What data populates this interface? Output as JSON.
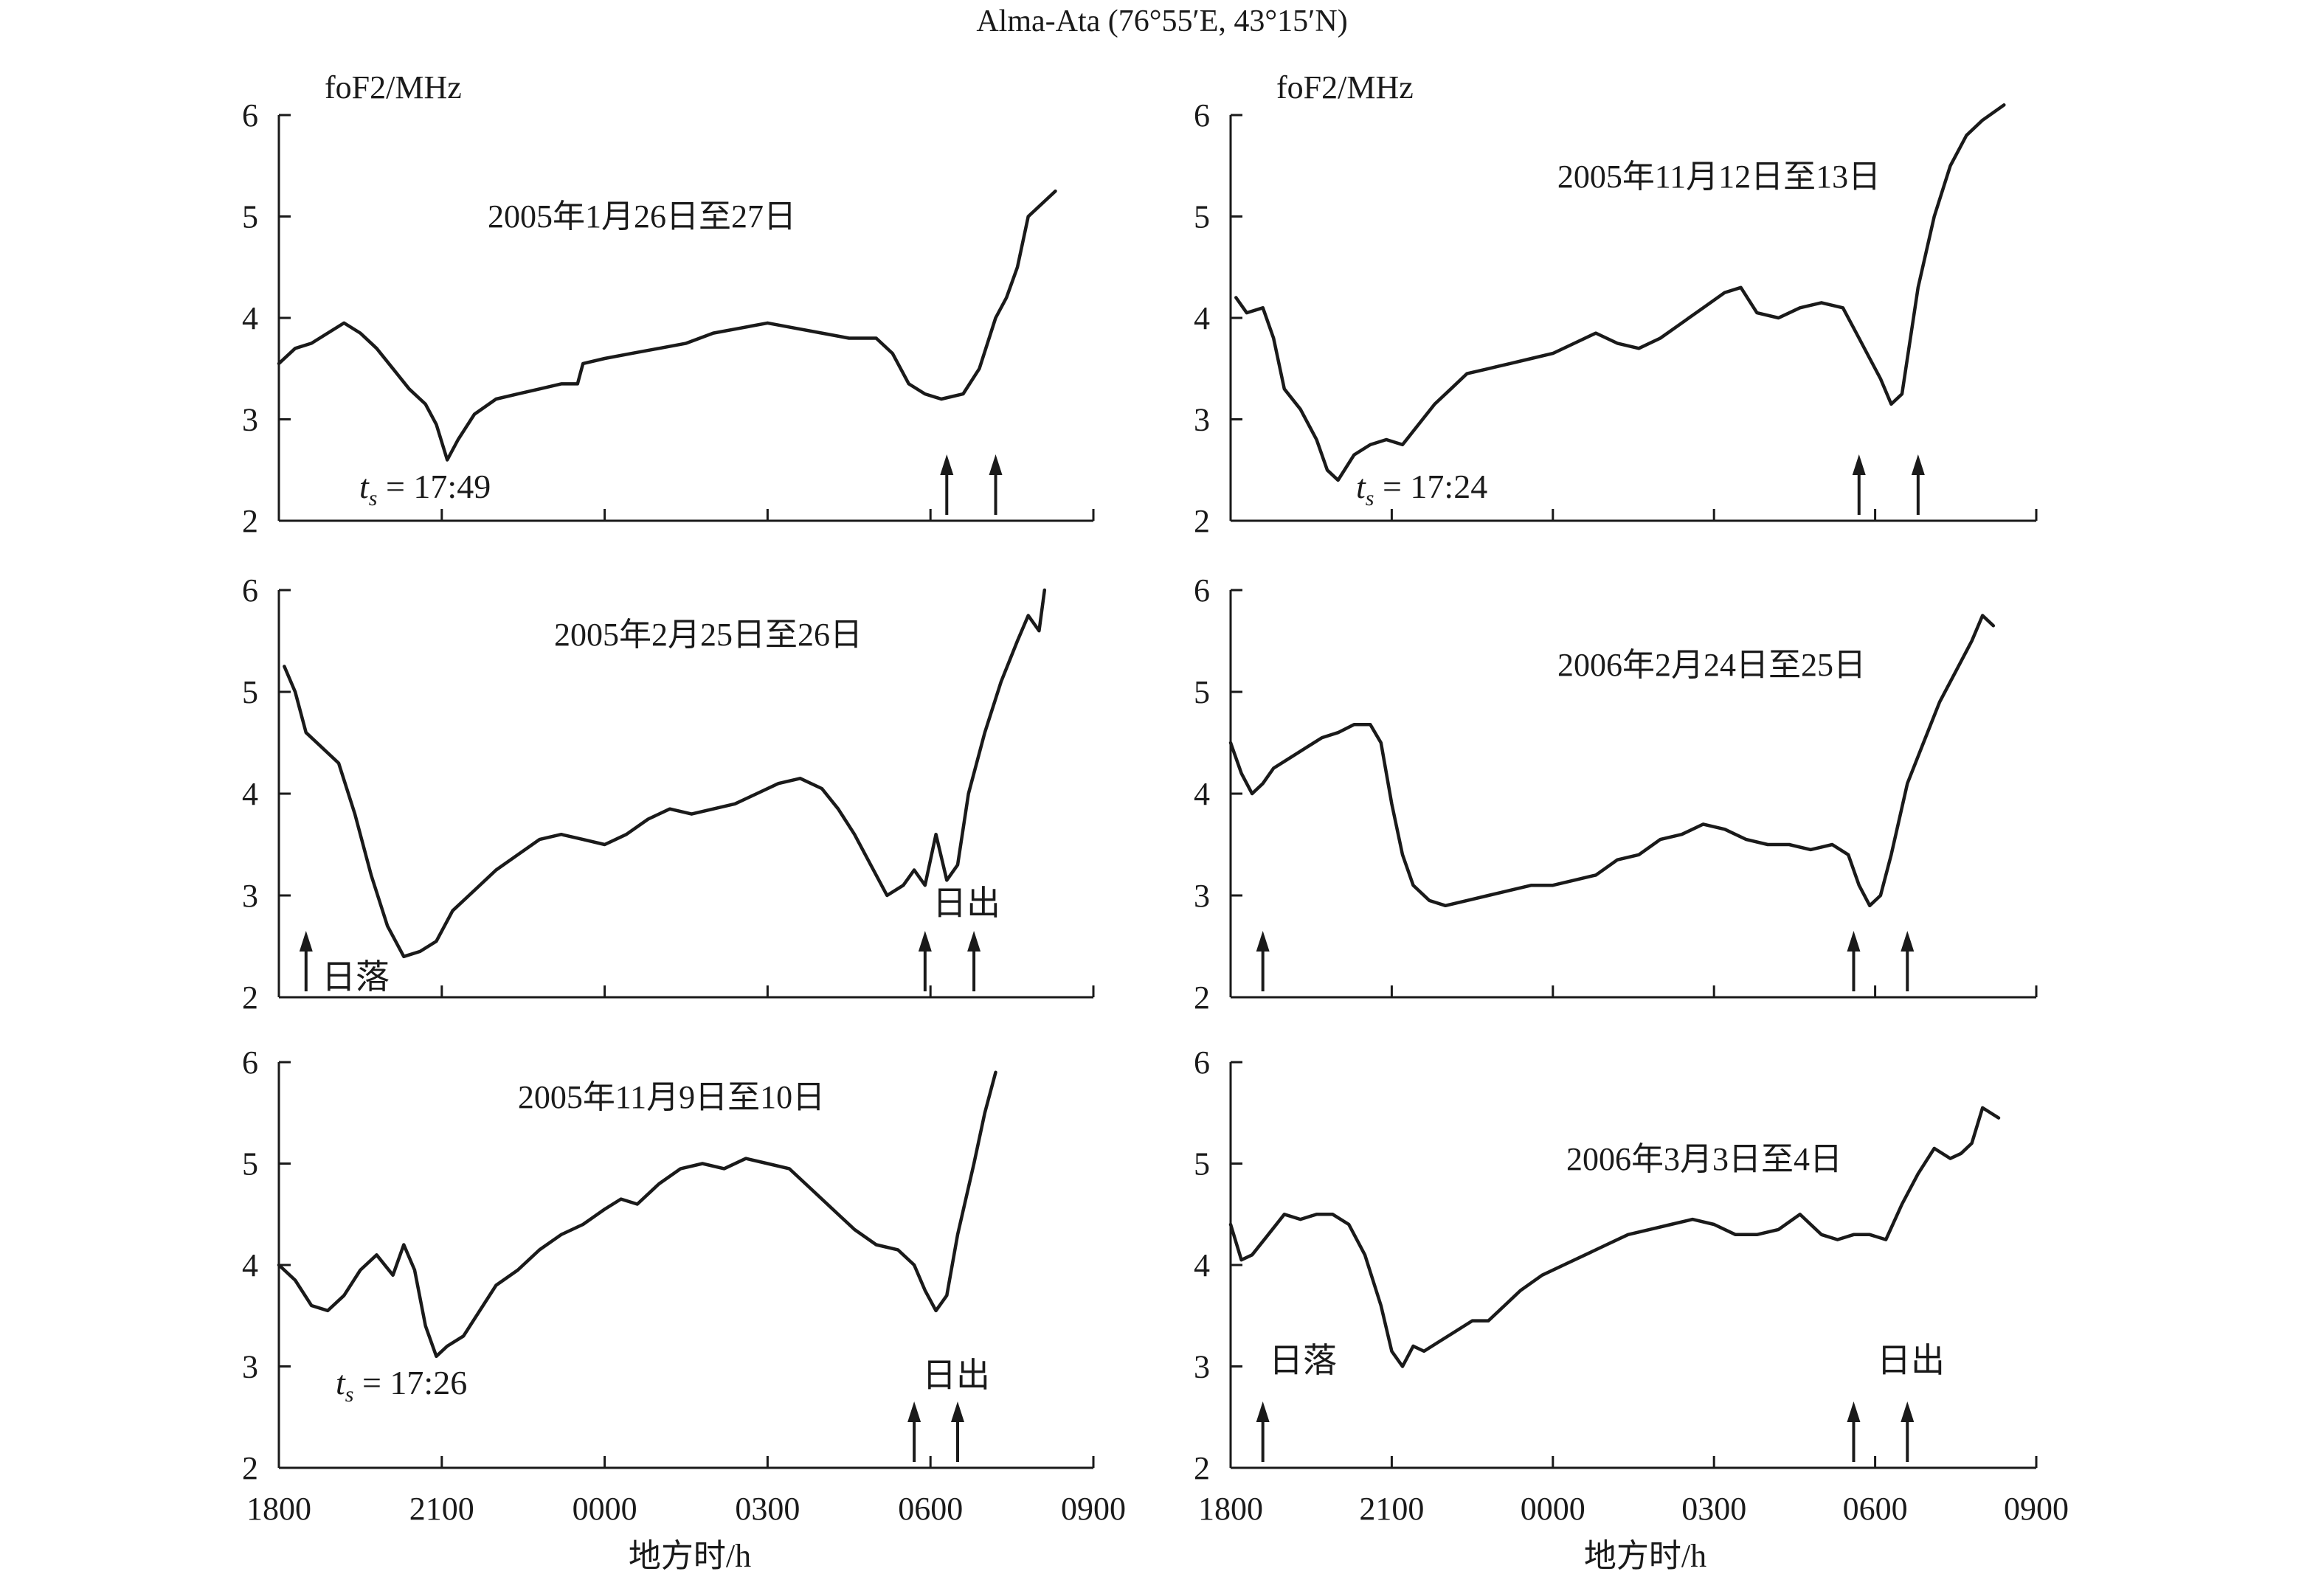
{
  "figure": {
    "title": "Alma-Ata (76°55′E, 43°15′N)",
    "xlabel": "地方时/h",
    "ylabel": "foF2/MHz"
  },
  "chart_data": [
    {
      "type": "line",
      "title": "2005年1月26日至27日",
      "ts_label": "17:49",
      "ylim": [
        2,
        6
      ],
      "yticks": [
        2,
        3,
        4,
        5,
        6
      ],
      "xlim": [
        18,
        33
      ],
      "xticks": [
        "1800",
        "2100",
        "0000",
        "0300",
        "0600",
        "0900"
      ],
      "arrows": [
        30.3,
        31.2
      ],
      "marker_labels": [],
      "x": [
        18.0,
        18.3,
        18.6,
        18.9,
        19.2,
        19.5,
        19.8,
        20.1,
        20.4,
        20.7,
        20.9,
        21.1,
        21.3,
        21.6,
        22.0,
        22.4,
        22.8,
        23.2,
        23.5,
        23.6,
        24.0,
        24.5,
        25.0,
        25.5,
        26.0,
        26.5,
        27.0,
        27.5,
        28.0,
        28.5,
        29.0,
        29.3,
        29.6,
        29.9,
        30.2,
        30.6,
        30.9,
        31.2,
        31.4,
        31.6,
        31.8,
        32.1,
        32.3
      ],
      "y": [
        3.55,
        3.7,
        3.75,
        3.85,
        3.95,
        3.85,
        3.7,
        3.5,
        3.3,
        3.15,
        2.95,
        2.6,
        2.8,
        3.05,
        3.2,
        3.25,
        3.3,
        3.35,
        3.35,
        3.55,
        3.6,
        3.65,
        3.7,
        3.75,
        3.85,
        3.9,
        3.95,
        3.9,
        3.85,
        3.8,
        3.8,
        3.65,
        3.35,
        3.25,
        3.2,
        3.25,
        3.5,
        4.0,
        4.2,
        4.5,
        5.0,
        5.15,
        5.25
      ]
    },
    {
      "type": "line",
      "title": "2005年2月25日至26日",
      "ts_label": "",
      "ylim": [
        2,
        6
      ],
      "yticks": [
        2,
        3,
        4,
        5,
        6
      ],
      "xlim": [
        18,
        33
      ],
      "xticks": [
        "1800",
        "2100",
        "0000",
        "0300",
        "0600",
        "0900"
      ],
      "arrows": [
        18.5,
        29.9,
        30.8
      ],
      "marker_labels": [
        "日落",
        "日出"
      ],
      "x": [
        18.1,
        18.3,
        18.5,
        18.8,
        19.1,
        19.4,
        19.7,
        20.0,
        20.3,
        20.6,
        20.9,
        21.2,
        21.6,
        22.0,
        22.4,
        22.8,
        23.2,
        23.6,
        24.0,
        24.4,
        24.8,
        25.2,
        25.6,
        26.0,
        26.4,
        26.8,
        27.2,
        27.6,
        28.0,
        28.3,
        28.6,
        28.9,
        29.2,
        29.5,
        29.7,
        29.9,
        30.1,
        30.3,
        30.5,
        30.7,
        31.0,
        31.3,
        31.6,
        31.8,
        32.0,
        32.1
      ],
      "y": [
        5.25,
        5.0,
        4.6,
        4.45,
        4.3,
        3.8,
        3.2,
        2.7,
        2.4,
        2.45,
        2.55,
        2.85,
        3.05,
        3.25,
        3.4,
        3.55,
        3.6,
        3.55,
        3.5,
        3.6,
        3.75,
        3.85,
        3.8,
        3.85,
        3.9,
        4.0,
        4.1,
        4.15,
        4.05,
        3.85,
        3.6,
        3.3,
        3.0,
        3.1,
        3.25,
        3.1,
        3.6,
        3.15,
        3.3,
        4.0,
        4.6,
        5.1,
        5.5,
        5.75,
        5.6,
        6.0
      ]
    },
    {
      "type": "line",
      "title": "2005年11月9日至10日",
      "ts_label": "17:26",
      "ylim": [
        2,
        6
      ],
      "yticks": [
        2,
        3,
        4,
        5,
        6
      ],
      "xlim": [
        18,
        33
      ],
      "xticks": [
        "1800",
        "2100",
        "0000",
        "0300",
        "0600",
        "0900"
      ],
      "arrows": [
        29.7,
        30.5
      ],
      "marker_labels": [
        "日出"
      ],
      "x": [
        18.0,
        18.3,
        18.6,
        18.9,
        19.2,
        19.5,
        19.8,
        20.1,
        20.3,
        20.5,
        20.7,
        20.9,
        21.1,
        21.4,
        21.7,
        22.0,
        22.4,
        22.8,
        23.2,
        23.6,
        24.0,
        24.3,
        24.6,
        25.0,
        25.4,
        25.8,
        26.2,
        26.6,
        27.0,
        27.4,
        27.8,
        28.2,
        28.6,
        29.0,
        29.4,
        29.7,
        29.9,
        30.1,
        30.3,
        30.5,
        30.8,
        31.0,
        31.2
      ],
      "y": [
        4.0,
        3.85,
        3.6,
        3.55,
        3.7,
        3.95,
        4.1,
        3.9,
        4.2,
        3.95,
        3.4,
        3.1,
        3.2,
        3.3,
        3.55,
        3.8,
        3.95,
        4.15,
        4.3,
        4.4,
        4.55,
        4.65,
        4.6,
        4.8,
        4.95,
        5.0,
        4.95,
        5.05,
        5.0,
        4.95,
        4.75,
        4.55,
        4.35,
        4.2,
        4.15,
        4.0,
        3.75,
        3.55,
        3.7,
        4.3,
        5.0,
        5.5,
        5.9
      ]
    },
    {
      "type": "line",
      "title": "2005年11月12日至13日",
      "ts_label": "17:24",
      "ylim": [
        2,
        6
      ],
      "yticks": [
        2,
        3,
        4,
        5,
        6
      ],
      "xlim": [
        18,
        33
      ],
      "xticks": [
        "1800",
        "2100",
        "0000",
        "0300",
        "0600",
        "0900"
      ],
      "arrows": [
        29.7,
        30.8
      ],
      "marker_labels": [],
      "x": [
        18.1,
        18.3,
        18.6,
        18.8,
        19.0,
        19.3,
        19.6,
        19.8,
        20.0,
        20.3,
        20.6,
        20.9,
        21.2,
        21.5,
        21.8,
        22.1,
        22.4,
        22.8,
        23.2,
        23.6,
        24.0,
        24.4,
        24.8,
        25.2,
        25.6,
        26.0,
        26.4,
        26.8,
        27.2,
        27.5,
        27.8,
        28.2,
        28.6,
        29.0,
        29.4,
        29.7,
        29.9,
        30.1,
        30.3,
        30.5,
        30.8,
        31.1,
        31.4,
        31.7,
        32.0,
        32.4
      ],
      "y": [
        4.2,
        4.05,
        4.1,
        3.8,
        3.3,
        3.1,
        2.8,
        2.5,
        2.4,
        2.65,
        2.75,
        2.8,
        2.75,
        2.95,
        3.15,
        3.3,
        3.45,
        3.5,
        3.55,
        3.6,
        3.65,
        3.75,
        3.85,
        3.75,
        3.7,
        3.8,
        3.95,
        4.1,
        4.25,
        4.3,
        4.05,
        4.0,
        4.1,
        4.15,
        4.1,
        3.8,
        3.6,
        3.4,
        3.15,
        3.25,
        4.3,
        5.0,
        5.5,
        5.8,
        5.95,
        6.1
      ]
    },
    {
      "type": "line",
      "title": "2006年2月24日至25日",
      "ts_label": "",
      "ylim": [
        2,
        6
      ],
      "yticks": [
        2,
        3,
        4,
        5,
        6
      ],
      "xlim": [
        18,
        33
      ],
      "xticks": [
        "1800",
        "2100",
        "0000",
        "0300",
        "0600",
        "0900"
      ],
      "arrows": [
        18.6,
        29.6,
        30.6
      ],
      "marker_labels": [],
      "x": [
        18.0,
        18.2,
        18.4,
        18.6,
        18.8,
        19.1,
        19.4,
        19.7,
        20.0,
        20.3,
        20.6,
        20.8,
        21.0,
        21.2,
        21.4,
        21.7,
        22.0,
        22.4,
        22.8,
        23.2,
        23.6,
        24.0,
        24.4,
        24.8,
        25.2,
        25.6,
        26.0,
        26.4,
        26.8,
        27.2,
        27.6,
        28.0,
        28.4,
        28.8,
        29.2,
        29.5,
        29.7,
        29.9,
        30.1,
        30.3,
        30.6,
        30.9,
        31.2,
        31.5,
        31.8,
        32.0,
        32.2
      ],
      "y": [
        4.5,
        4.2,
        4.0,
        4.1,
        4.25,
        4.35,
        4.45,
        4.55,
        4.6,
        4.68,
        4.68,
        4.5,
        3.9,
        3.4,
        3.1,
        2.95,
        2.9,
        2.95,
        3.0,
        3.05,
        3.1,
        3.1,
        3.15,
        3.2,
        3.35,
        3.4,
        3.55,
        3.6,
        3.7,
        3.65,
        3.55,
        3.5,
        3.5,
        3.45,
        3.5,
        3.4,
        3.1,
        2.9,
        3.0,
        3.4,
        4.1,
        4.5,
        4.9,
        5.2,
        5.5,
        5.75,
        5.65
      ]
    },
    {
      "type": "line",
      "title": "2006年3月3日至4日",
      "ts_label": "",
      "ylim": [
        2,
        6
      ],
      "yticks": [
        2,
        3,
        4,
        5,
        6
      ],
      "xlim": [
        18,
        33
      ],
      "xticks": [
        "1800",
        "2100",
        "0000",
        "0300",
        "0600",
        "0900"
      ],
      "arrows": [
        18.6,
        29.6,
        30.6
      ],
      "marker_labels": [
        "日落",
        "日出"
      ],
      "x": [
        18.0,
        18.2,
        18.4,
        18.7,
        19.0,
        19.3,
        19.6,
        19.9,
        20.2,
        20.5,
        20.8,
        21.0,
        21.2,
        21.4,
        21.6,
        21.9,
        22.2,
        22.5,
        22.8,
        23.1,
        23.4,
        23.8,
        24.2,
        24.6,
        25.0,
        25.4,
        25.8,
        26.2,
        26.6,
        27.0,
        27.4,
        27.8,
        28.2,
        28.6,
        29.0,
        29.3,
        29.6,
        29.9,
        30.2,
        30.5,
        30.8,
        31.1,
        31.4,
        31.6,
        31.8,
        32.0,
        32.3
      ],
      "y": [
        4.4,
        4.05,
        4.1,
        4.3,
        4.5,
        4.45,
        4.5,
        4.5,
        4.4,
        4.1,
        3.6,
        3.15,
        3.0,
        3.2,
        3.15,
        3.25,
        3.35,
        3.45,
        3.45,
        3.6,
        3.75,
        3.9,
        4.0,
        4.1,
        4.2,
        4.3,
        4.35,
        4.4,
        4.45,
        4.4,
        4.3,
        4.3,
        4.35,
        4.5,
        4.3,
        4.25,
        4.3,
        4.3,
        4.25,
        4.6,
        4.9,
        5.15,
        5.05,
        5.1,
        5.2,
        5.55,
        5.45
      ]
    }
  ]
}
